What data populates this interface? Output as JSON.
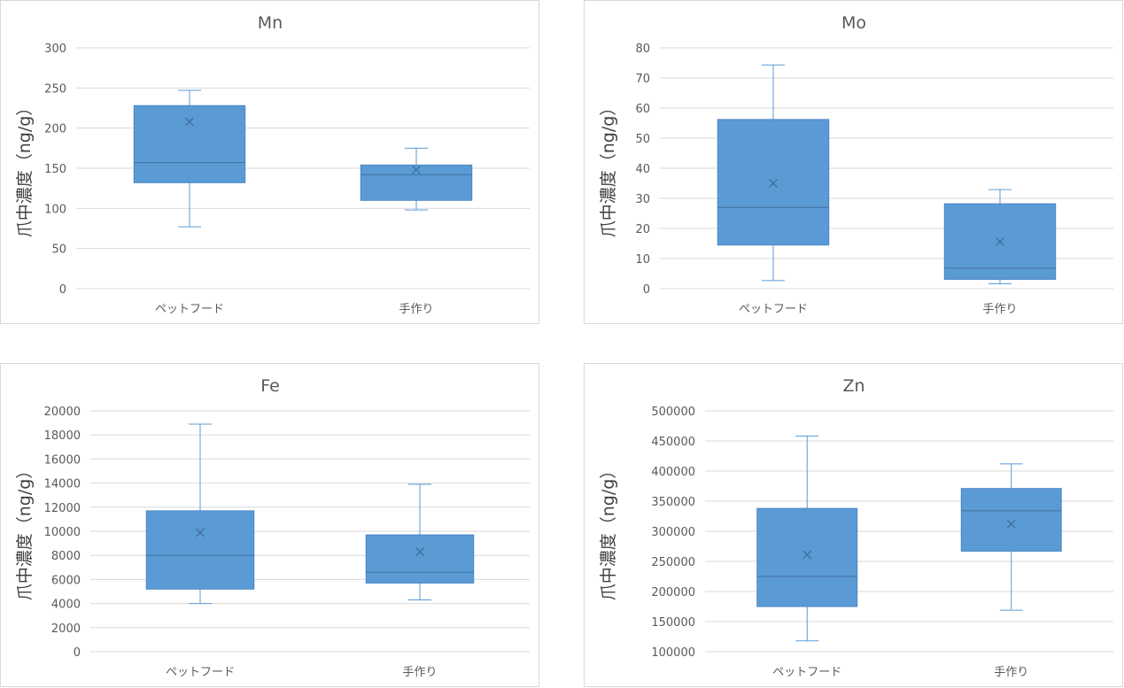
{
  "colors": {
    "box_fill": "#5B9BD5",
    "box_stroke": "#4A86C5",
    "whisker": "#5B9BD5",
    "grid": "#d9d9d9",
    "text": "#595959"
  },
  "chart_data": [
    {
      "type": "box",
      "title": "Mn",
      "ylabel": "爪中濃度（ng/g）",
      "categories": [
        "ペットフード",
        "手作り"
      ],
      "ylim": [
        0,
        300
      ],
      "yticks": [
        0,
        50,
        100,
        150,
        200,
        250,
        300
      ],
      "ytick_labels": [
        "0",
        "50",
        "100",
        "150",
        "200",
        "250",
        "300"
      ],
      "boxes": [
        {
          "min": 77,
          "q1": 132,
          "median": 157,
          "q3": 228,
          "max": 247,
          "mean": 208
        },
        {
          "min": 98,
          "q1": 110,
          "median": 142,
          "q3": 154,
          "max": 175,
          "mean": 148
        }
      ],
      "grid": true,
      "legend": "none"
    },
    {
      "type": "box",
      "title": "Mo",
      "ylabel": "爪中濃度（ng/g）",
      "categories": [
        "ペットフード",
        "手作り"
      ],
      "ylim": [
        0,
        80
      ],
      "yticks": [
        0,
        10,
        20,
        30,
        40,
        50,
        60,
        70,
        80
      ],
      "ytick_labels": [
        "0",
        "10",
        "20",
        "30",
        "40",
        "50",
        "60",
        "70",
        "80"
      ],
      "boxes": [
        {
          "min": 2.7,
          "q1": 14.5,
          "median": 27,
          "q3": 56.2,
          "max": 74.3,
          "mean": 35
        },
        {
          "min": 1.6,
          "q1": 3.1,
          "median": 6.8,
          "q3": 28.2,
          "max": 32.9,
          "mean": 15.6
        }
      ],
      "grid": true,
      "legend": "none"
    },
    {
      "type": "box",
      "title": "Fe",
      "ylabel": "爪中濃度（ng/g）",
      "categories": [
        "ペットフード",
        "手作り"
      ],
      "ylim": [
        0,
        20000
      ],
      "yticks": [
        0,
        2000,
        4000,
        6000,
        8000,
        10000,
        12000,
        14000,
        16000,
        18000,
        20000
      ],
      "ytick_labels": [
        "0",
        "2000",
        "4000",
        "6000",
        "8000",
        "10000",
        "12000",
        "14000",
        "16000",
        "18000",
        "20000"
      ],
      "boxes": [
        {
          "min": 4000,
          "q1": 5200,
          "median": 8000,
          "q3": 11700,
          "max": 18900,
          "mean": 9900
        },
        {
          "min": 4300,
          "q1": 5700,
          "median": 6600,
          "q3": 9700,
          "max": 13900,
          "mean": 8300
        }
      ],
      "grid": true,
      "legend": "none"
    },
    {
      "type": "box",
      "title": "Zn",
      "ylabel": "爪中濃度（ng/g）",
      "categories": [
        "ペットフード",
        "手作り"
      ],
      "ylim": [
        100000,
        500000
      ],
      "yticks": [
        100000,
        150000,
        200000,
        250000,
        300000,
        350000,
        400000,
        450000,
        500000
      ],
      "ytick_labels": [
        "100000",
        "150000",
        "200000",
        "250000",
        "300000",
        "350000",
        "400000",
        "450000",
        "500000"
      ],
      "boxes": [
        {
          "min": 118000,
          "q1": 175000,
          "median": 225000,
          "q3": 338000,
          "max": 458000,
          "mean": 261000
        },
        {
          "min": 169000,
          "q1": 267000,
          "median": 334000,
          "q3": 371000,
          "max": 412000,
          "mean": 312000
        }
      ],
      "grid": true,
      "legend": "none"
    }
  ]
}
